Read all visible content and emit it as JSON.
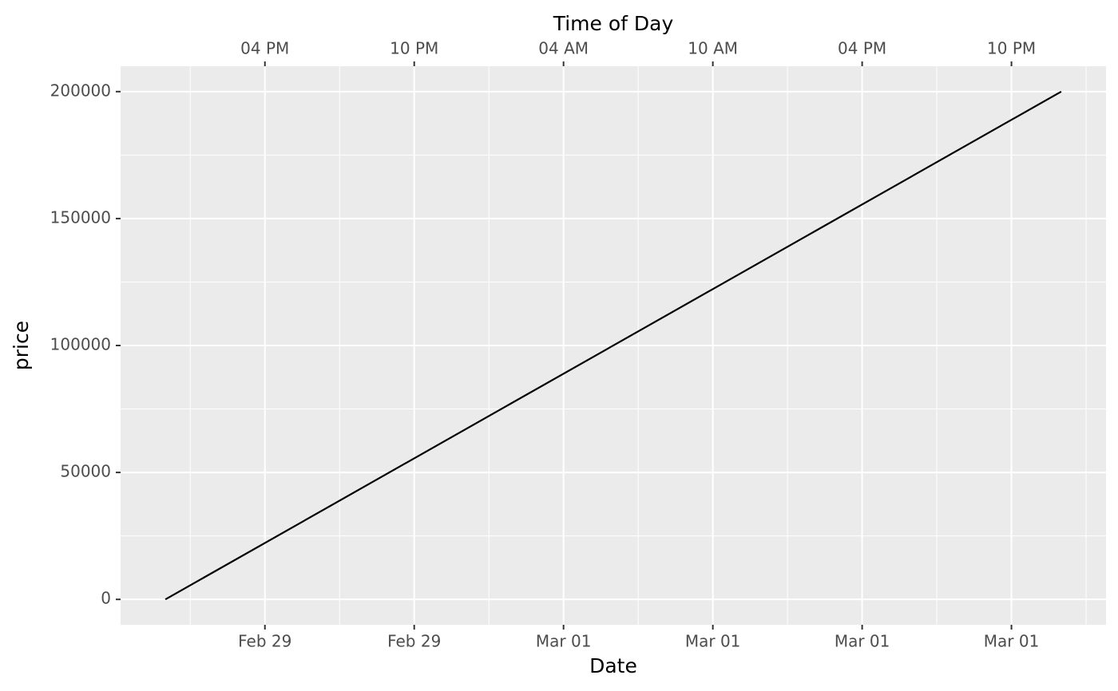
{
  "chart_data": {
    "type": "line",
    "x_title": "Date",
    "x2_title": "Time of Day",
    "y_title": "price",
    "x": [
      12,
      48
    ],
    "series": [
      {
        "values": [
          0,
          200000
        ],
        "color": "#000000"
      }
    ],
    "xlim": [
      10.2,
      49.8
    ],
    "xticks": [
      {
        "value": 16,
        "label": "Feb 29"
      },
      {
        "value": 22,
        "label": "Feb 29"
      },
      {
        "value": 28,
        "label": "Mar 01"
      },
      {
        "value": 34,
        "label": "Mar 01"
      },
      {
        "value": 40,
        "label": "Mar 01"
      },
      {
        "value": 46,
        "label": "Mar 01"
      }
    ],
    "x2ticks": [
      {
        "value": 16,
        "label": "04 PM"
      },
      {
        "value": 22,
        "label": "10 PM"
      },
      {
        "value": 28,
        "label": "04 AM"
      },
      {
        "value": 34,
        "label": "10 AM"
      },
      {
        "value": 40,
        "label": "04 PM"
      },
      {
        "value": 46,
        "label": "10 PM"
      }
    ],
    "ylim": [
      -10000,
      210000
    ],
    "yticks": [
      0,
      50000,
      100000,
      150000,
      200000
    ],
    "grid": true
  }
}
